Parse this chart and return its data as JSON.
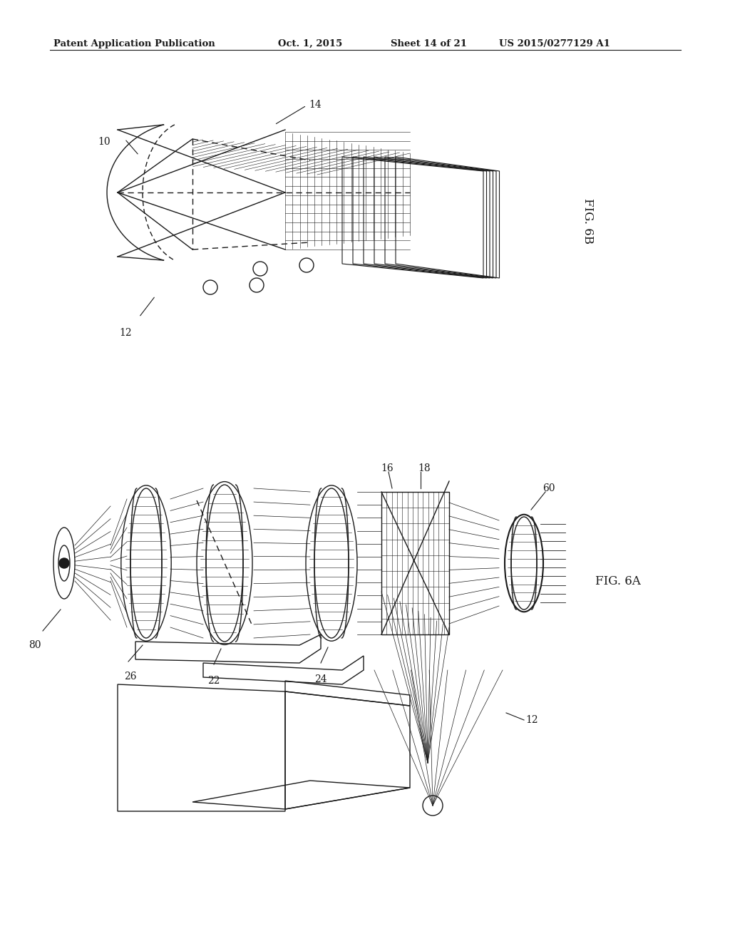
{
  "bg_color": "#ffffff",
  "line_color": "#1a1a1a",
  "header_text": "Patent Application Publication",
  "header_date": "Oct. 1, 2015",
  "header_sheet": "Sheet 14 of 21",
  "header_patent": "US 2015/0277129 A1",
  "fig6b_label": "FIG. 6B",
  "fig6a_label": "FIG. 6A",
  "figsize": [
    10.24,
    13.2
  ],
  "dpi": 100
}
